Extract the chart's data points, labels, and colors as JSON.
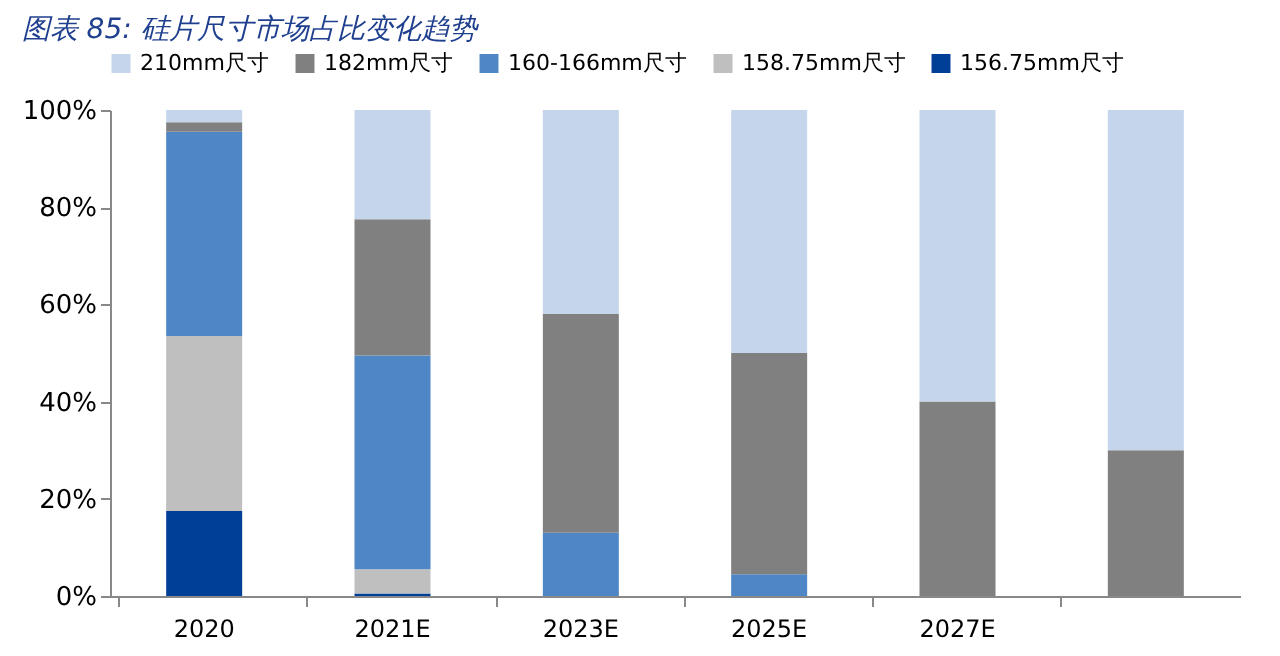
{
  "chart_data": {
    "type": "bar",
    "title": "图表 85:  硅片尺寸市场占比变化趋势",
    "stacked": true,
    "categories": [
      "2020",
      "2021E",
      "2023E",
      "2025E",
      "2027E",
      null
    ],
    "series": [
      {
        "name": "156.75mm尺寸",
        "color": "#003f98",
        "values": [
          17.5,
          0.5,
          null,
          null,
          null,
          null
        ]
      },
      {
        "name": "158.75mm尺寸",
        "color": "#bfbfbf",
        "values": [
          36,
          5,
          null,
          null,
          null,
          null
        ]
      },
      {
        "name": "160-166mm尺寸",
        "color": "#4f86c6",
        "values": [
          42,
          44,
          13,
          4.5,
          null,
          null
        ]
      },
      {
        "name": "182mm尺寸",
        "color": "#808080",
        "values": [
          2,
          28,
          45,
          45.5,
          40,
          30
        ]
      },
      {
        "name": "210mm尺寸",
        "color": "#c5d5ec",
        "values": [
          2.5,
          22.5,
          42,
          50,
          60,
          70
        ]
      }
    ],
    "ylim": [
      0,
      100
    ],
    "yticks": [
      {
        "value": 0,
        "label": "0%"
      },
      {
        "value": 20,
        "label": "20%"
      },
      {
        "value": 40,
        "label": "40%"
      },
      {
        "value": 60,
        "label": "60%"
      },
      {
        "value": 80,
        "label": "80%"
      },
      {
        "value": 100,
        "label": "100%"
      }
    ],
    "grid": false,
    "legend": "top"
  }
}
